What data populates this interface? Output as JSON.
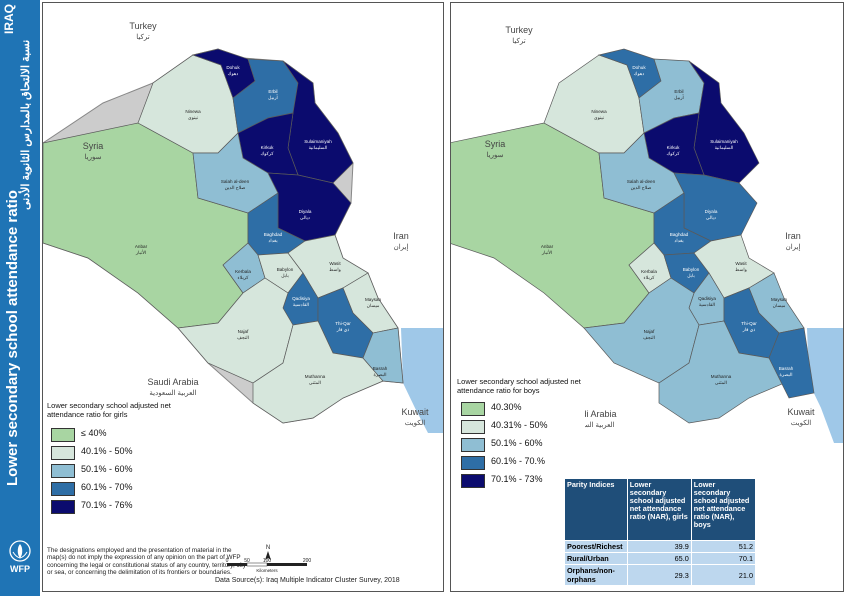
{
  "sidebar": {
    "country": "IRAQ",
    "title": "Lower secondary school attendance ratio",
    "title_ar": "نسبة الالتحاق بالمدارس الثانوية الأدنى",
    "logo_text": "WFP"
  },
  "colors": {
    "c1": "#a8d5a2",
    "c2": "#d6e6dc",
    "c3": "#8fbed3",
    "c4": "#2e6ea6",
    "c5": "#0b0b6e",
    "neighbor": "#ffffff",
    "water": "#9fc8e8"
  },
  "neighbors": [
    {
      "en": "Turkey",
      "ar": "تركيا"
    },
    {
      "en": "Syria",
      "ar": "سوريا"
    },
    {
      "en": "Iran",
      "ar": "إيران"
    },
    {
      "en": "Saudi Arabia",
      "ar": "العربية السعودية"
    },
    {
      "en": "Kuwait",
      "ar": "الكويت"
    }
  ],
  "governorates": [
    {
      "en": "Dohuk",
      "ar": "دهوك"
    },
    {
      "en": "Erbil",
      "ar": "أربيل"
    },
    {
      "en": "Ninewa",
      "ar": "نينوى"
    },
    {
      "en": "Kirkuk",
      "ar": "كركوك"
    },
    {
      "en": "Sulaimaniyah",
      "ar": "السليمانية"
    },
    {
      "en": "Salah al-deen",
      "ar": "صلاح الدين"
    },
    {
      "en": "Diyala",
      "ar": "ديالى"
    },
    {
      "en": "Anbar",
      "ar": "الأنبار"
    },
    {
      "en": "Baghdad",
      "ar": "بغداد"
    },
    {
      "en": "Kerbala",
      "ar": "كربلاء"
    },
    {
      "en": "Babylon",
      "ar": "بابل"
    },
    {
      "en": "Wasit",
      "ar": "واسط"
    },
    {
      "en": "Qadisiya",
      "ar": "القادسية"
    },
    {
      "en": "Najaf",
      "ar": "النجف"
    },
    {
      "en": "Thi-Qar",
      "ar": "ذي قار"
    },
    {
      "en": "Maysan",
      "ar": "ميسان"
    },
    {
      "en": "Muthanna",
      "ar": "المثنى"
    },
    {
      "en": "Basrah",
      "ar": "البصرة"
    }
  ],
  "map_girls": {
    "legend_title": "Lower secondary school adjusted net attendance ratio for girls",
    "classes": [
      "≤ 40%",
      "40.1% - 50%",
      "50.1% - 60%",
      "60.1% - 70%",
      "70.1% - 76%"
    ],
    "class_by_gov": {
      "Dohuk": 5,
      "Erbil": 4,
      "Ninewa": 2,
      "Kirkuk": 5,
      "Sulaimaniyah": 5,
      "Salah al-deen": 3,
      "Diyala": 5,
      "Anbar": 1,
      "Baghdad": 4,
      "Kerbala": 3,
      "Babylon": 2,
      "Wasit": 2,
      "Qadisiya": 4,
      "Najaf": 2,
      "Thi-Qar": 4,
      "Maysan": 2,
      "Muthanna": 2,
      "Basrah": 3
    }
  },
  "map_boys": {
    "legend_title": "Lower secondary school adjusted net attendance ratio for boys",
    "classes": [
      "40.30%",
      "40.31% - 50%",
      "50.1% - 60%",
      "60.1% - 70.%",
      "70.1% - 73%"
    ],
    "class_by_gov": {
      "Dohuk": 4,
      "Erbil": 3,
      "Ninewa": 2,
      "Kirkuk": 5,
      "Sulaimaniyah": 5,
      "Salah al-deen": 3,
      "Diyala": 4,
      "Anbar": 1,
      "Baghdad": 4,
      "Kerbala": 2,
      "Babylon": 4,
      "Wasit": 2,
      "Qadisiya": 3,
      "Najaf": 3,
      "Thi-Qar": 4,
      "Maysan": 3,
      "Muthanna": 3,
      "Basrah": 4
    }
  },
  "parity_table": {
    "headers": [
      "Parity Indices",
      "Lower secondary school adjusted net attendance ratio (NAR), girls",
      "Lower secondary school adjusted net attendance ratio (NAR), boys"
    ],
    "rows": [
      {
        "label": "Poorest/Richest",
        "girls": "39.9",
        "boys": "51.2"
      },
      {
        "label": "Rural/Urban",
        "girls": "65.0",
        "boys": "70.1"
      },
      {
        "label": "Orphans/non-orphans",
        "girls": "29.3",
        "boys": "21.0"
      }
    ]
  },
  "disclaimer": "The designations employed and the presentation of material in the map(s) do not imply the expression of any opinion on the part of WFP concerning the legal or constitutional status of any country, territory, city or sea, or concerning the delimitation of its frontiers or boundaries.",
  "source": "Data Source(s): Iraq Multiple Indicator Cluster Survey, 2018",
  "scale": {
    "ticks": [
      "0",
      "50",
      "100",
      "200"
    ],
    "unit": "Kilometers",
    "north": "N"
  }
}
